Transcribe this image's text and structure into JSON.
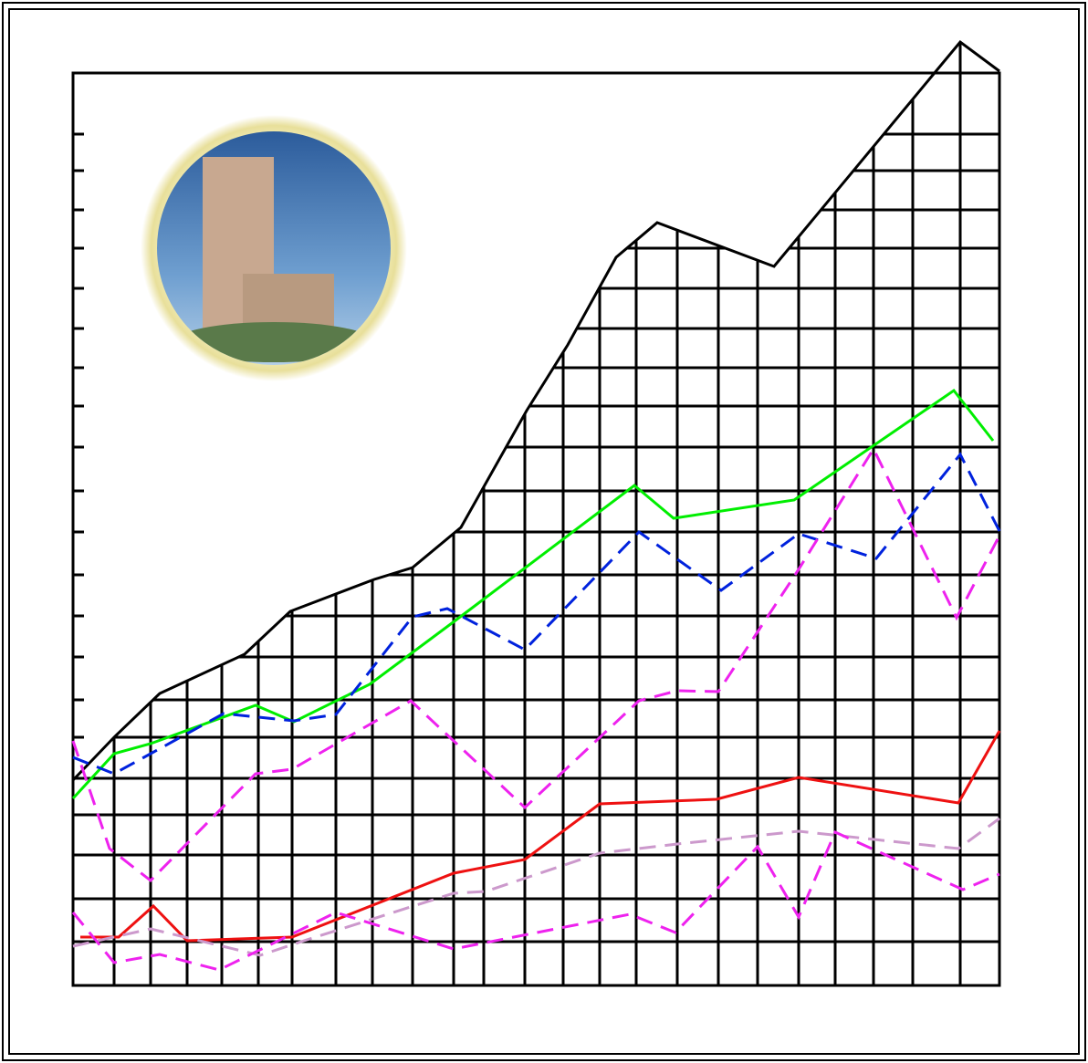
{
  "chart_data": {
    "type": "line",
    "xlim": [
      0,
      101.5
    ],
    "ylim": [
      0,
      100
    ],
    "xticks": [
      4.5,
      8.5,
      12.5,
      16.3,
      20.3,
      24,
      28.8,
      32.8,
      37.2,
      41.7,
      45,
      49.5,
      53.7,
      57.7,
      61.7,
      66.2,
      70.7,
      75,
      79.5,
      83.5,
      87.7,
      92,
      97.2,
      101.5
    ],
    "yticks": [
      93.3,
      89.3,
      85,
      80.8,
      76.4,
      72,
      67.7,
      63.5,
      59,
      54.2,
      49.7,
      45,
      40.5,
      36,
      31.3,
      27.2,
      22.7,
      18.7,
      14.3,
      9.5,
      4.8
    ],
    "grid": true,
    "outline": {
      "color": "#000000",
      "x": [
        0,
        4.5,
        9.5,
        18.8,
        23.8,
        33,
        37.2,
        42.5,
        49.7,
        54.2,
        59.5,
        64,
        76.8,
        97.2,
        101.5
      ],
      "values": [
        22.5,
        27.2,
        32,
        36.3,
        41,
        44.5,
        45.8,
        50.2,
        63,
        70.2,
        79.8,
        83.6,
        78.8,
        103.4,
        100.2
      ]
    },
    "series": [
      {
        "color": "#00ee00",
        "dashed": false,
        "x": [
          0,
          4.5,
          8.5,
          20,
          24.2,
          32.5,
          41.5,
          61.5,
          65.8,
          79,
          96.5,
          100.8
        ],
        "values": [
          20.5,
          25.4,
          26.5,
          30.7,
          28.9,
          33,
          39.7,
          54.8,
          51.2,
          53.2,
          65.2,
          59.7
        ]
      },
      {
        "color": "#0022dd",
        "dashed": true,
        "x": [
          0,
          4.5,
          16.5,
          24.2,
          28.8,
          37.2,
          41,
          49.5,
          62,
          71,
          79.5,
          88,
          97.2,
          101.5
        ],
        "values": [
          25,
          23.2,
          29.8,
          29,
          29.7,
          40.4,
          41.3,
          36.8,
          49.7,
          43.3,
          49.5,
          46.8,
          58.2,
          49.8
        ]
      },
      {
        "color": "#ee22ee",
        "dashed": true,
        "x": [
          0,
          4,
          8.5,
          20,
          24,
          37,
          49.5,
          62,
          66.2,
          70.7,
          79.5,
          87.7,
          96.8,
          101.5
        ],
        "values": [
          26.8,
          15,
          11.5,
          23.2,
          23.7,
          31.2,
          19.5,
          31.2,
          32.3,
          32.2,
          45.6,
          58.8,
          40.3,
          49.3
        ]
      },
      {
        "color": "#ee1111",
        "dashed": false,
        "x": [
          0.8,
          5,
          8.8,
          12.5,
          24,
          41.7,
          49.5,
          57.7,
          70.5,
          79.5,
          97,
          101.5
        ],
        "values": [
          5.3,
          5.3,
          8.7,
          4.9,
          5.3,
          12.3,
          13.8,
          19.9,
          20.4,
          22.8,
          20,
          27.9
        ]
      },
      {
        "color": "#cc99cc",
        "dashed": true,
        "x": [
          0,
          8.5,
          20.5,
          25,
          41.7,
          45.2,
          57.7,
          66.2,
          79.5,
          97,
          101.5
        ],
        "values": [
          4.3,
          6.2,
          3.3,
          4.8,
          10.1,
          10.3,
          14.5,
          15.5,
          16.9,
          15,
          18.3
        ]
      },
      {
        "color": "#ee22ee",
        "dashed": true,
        "x": [
          0,
          4.5,
          9.5,
          16,
          28.8,
          41.7,
          61,
          66,
          75,
          79.5,
          83.5,
          97.5,
          101.5
        ],
        "values": [
          8,
          2.5,
          3.4,
          1.7,
          8,
          4,
          7.8,
          5.8,
          15.2,
          7.5,
          16.8,
          10.5,
          12.2
        ]
      }
    ]
  }
}
